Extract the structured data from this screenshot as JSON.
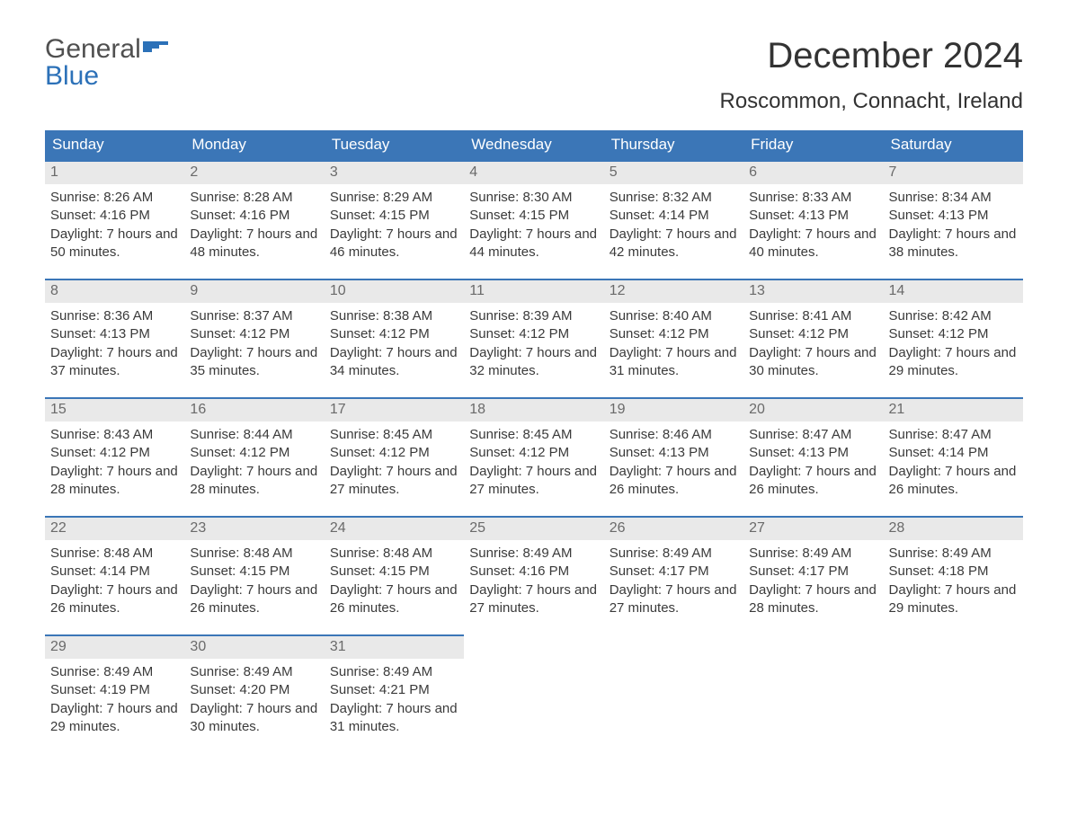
{
  "brand": {
    "word1": "General",
    "word2": "Blue"
  },
  "colors": {
    "header_bg": "#3b76b7",
    "header_text": "#ffffff",
    "daynum_bg": "#e9e9e9",
    "daynum_text": "#6a6a6a",
    "body_text": "#3a3a3a",
    "accent_border": "#3b76b7",
    "logo_gray": "#505050",
    "logo_blue": "#2c71b8",
    "background": "#ffffff"
  },
  "typography": {
    "title_fontsize": 40,
    "location_fontsize": 24,
    "header_fontsize": 17,
    "daynum_fontsize": 16,
    "content_fontsize": 15,
    "font_family": "Arial"
  },
  "title": "December 2024",
  "location": "Roscommon, Connacht, Ireland",
  "weekdays": [
    "Sunday",
    "Monday",
    "Tuesday",
    "Wednesday",
    "Thursday",
    "Friday",
    "Saturday"
  ],
  "labels": {
    "sunrise": "Sunrise:",
    "sunset": "Sunset:",
    "daylight": "Daylight:"
  },
  "layout": {
    "columns": 7,
    "rows": 5,
    "first_weekday": "Sunday",
    "first_day_column": 0
  },
  "days": [
    {
      "n": 1,
      "sunrise": "8:26 AM",
      "sunset": "4:16 PM",
      "daylight": "7 hours and 50 minutes."
    },
    {
      "n": 2,
      "sunrise": "8:28 AM",
      "sunset": "4:16 PM",
      "daylight": "7 hours and 48 minutes."
    },
    {
      "n": 3,
      "sunrise": "8:29 AM",
      "sunset": "4:15 PM",
      "daylight": "7 hours and 46 minutes."
    },
    {
      "n": 4,
      "sunrise": "8:30 AM",
      "sunset": "4:15 PM",
      "daylight": "7 hours and 44 minutes."
    },
    {
      "n": 5,
      "sunrise": "8:32 AM",
      "sunset": "4:14 PM",
      "daylight": "7 hours and 42 minutes."
    },
    {
      "n": 6,
      "sunrise": "8:33 AM",
      "sunset": "4:13 PM",
      "daylight": "7 hours and 40 minutes."
    },
    {
      "n": 7,
      "sunrise": "8:34 AM",
      "sunset": "4:13 PM",
      "daylight": "7 hours and 38 minutes."
    },
    {
      "n": 8,
      "sunrise": "8:36 AM",
      "sunset": "4:13 PM",
      "daylight": "7 hours and 37 minutes."
    },
    {
      "n": 9,
      "sunrise": "8:37 AM",
      "sunset": "4:12 PM",
      "daylight": "7 hours and 35 minutes."
    },
    {
      "n": 10,
      "sunrise": "8:38 AM",
      "sunset": "4:12 PM",
      "daylight": "7 hours and 34 minutes."
    },
    {
      "n": 11,
      "sunrise": "8:39 AM",
      "sunset": "4:12 PM",
      "daylight": "7 hours and 32 minutes."
    },
    {
      "n": 12,
      "sunrise": "8:40 AM",
      "sunset": "4:12 PM",
      "daylight": "7 hours and 31 minutes."
    },
    {
      "n": 13,
      "sunrise": "8:41 AM",
      "sunset": "4:12 PM",
      "daylight": "7 hours and 30 minutes."
    },
    {
      "n": 14,
      "sunrise": "8:42 AM",
      "sunset": "4:12 PM",
      "daylight": "7 hours and 29 minutes."
    },
    {
      "n": 15,
      "sunrise": "8:43 AM",
      "sunset": "4:12 PM",
      "daylight": "7 hours and 28 minutes."
    },
    {
      "n": 16,
      "sunrise": "8:44 AM",
      "sunset": "4:12 PM",
      "daylight": "7 hours and 28 minutes."
    },
    {
      "n": 17,
      "sunrise": "8:45 AM",
      "sunset": "4:12 PM",
      "daylight": "7 hours and 27 minutes."
    },
    {
      "n": 18,
      "sunrise": "8:45 AM",
      "sunset": "4:12 PM",
      "daylight": "7 hours and 27 minutes."
    },
    {
      "n": 19,
      "sunrise": "8:46 AM",
      "sunset": "4:13 PM",
      "daylight": "7 hours and 26 minutes."
    },
    {
      "n": 20,
      "sunrise": "8:47 AM",
      "sunset": "4:13 PM",
      "daylight": "7 hours and 26 minutes."
    },
    {
      "n": 21,
      "sunrise": "8:47 AM",
      "sunset": "4:14 PM",
      "daylight": "7 hours and 26 minutes."
    },
    {
      "n": 22,
      "sunrise": "8:48 AM",
      "sunset": "4:14 PM",
      "daylight": "7 hours and 26 minutes."
    },
    {
      "n": 23,
      "sunrise": "8:48 AM",
      "sunset": "4:15 PM",
      "daylight": "7 hours and 26 minutes."
    },
    {
      "n": 24,
      "sunrise": "8:48 AM",
      "sunset": "4:15 PM",
      "daylight": "7 hours and 26 minutes."
    },
    {
      "n": 25,
      "sunrise": "8:49 AM",
      "sunset": "4:16 PM",
      "daylight": "7 hours and 27 minutes."
    },
    {
      "n": 26,
      "sunrise": "8:49 AM",
      "sunset": "4:17 PM",
      "daylight": "7 hours and 27 minutes."
    },
    {
      "n": 27,
      "sunrise": "8:49 AM",
      "sunset": "4:17 PM",
      "daylight": "7 hours and 28 minutes."
    },
    {
      "n": 28,
      "sunrise": "8:49 AM",
      "sunset": "4:18 PM",
      "daylight": "7 hours and 29 minutes."
    },
    {
      "n": 29,
      "sunrise": "8:49 AM",
      "sunset": "4:19 PM",
      "daylight": "7 hours and 29 minutes."
    },
    {
      "n": 30,
      "sunrise": "8:49 AM",
      "sunset": "4:20 PM",
      "daylight": "7 hours and 30 minutes."
    },
    {
      "n": 31,
      "sunrise": "8:49 AM",
      "sunset": "4:21 PM",
      "daylight": "7 hours and 31 minutes."
    }
  ]
}
